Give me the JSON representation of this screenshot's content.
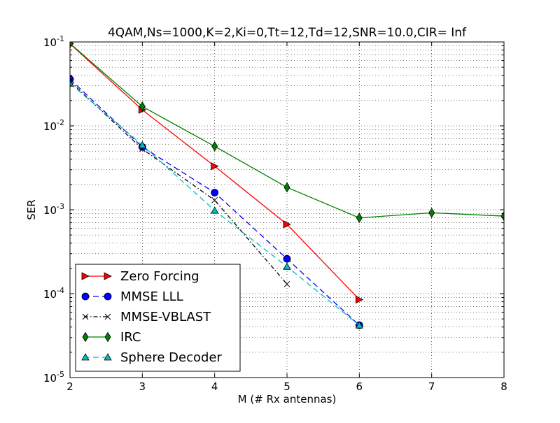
{
  "chart_data": {
    "type": "line",
    "title": "4QAM,Ns=1000,K=2,Ki=0,Tt=12,Td=12,SNR=10.0,CIR= Inf",
    "xlabel": "M (# Rx antennas)",
    "ylabel": "SER",
    "xlim": [
      2,
      8
    ],
    "ylim": [
      1e-05,
      0.1
    ],
    "yscale": "log",
    "grid": true,
    "legend_position": "bottom-left",
    "x_ticks": [
      2,
      3,
      4,
      5,
      6,
      7,
      8
    ],
    "y_ticks": [
      {
        "value": 0.1,
        "base": "10",
        "exp": "-1"
      },
      {
        "value": 0.01,
        "base": "10",
        "exp": "-2"
      },
      {
        "value": 0.001,
        "base": "10",
        "exp": "-3"
      },
      {
        "value": 0.0001,
        "base": "10",
        "exp": "-4"
      },
      {
        "value": 1e-05,
        "base": "10",
        "exp": "-5"
      }
    ],
    "series": [
      {
        "name": "Zero Forcing",
        "color": "#ff0000",
        "marker": "triangle-right",
        "dash": "",
        "x": [
          2,
          3,
          4,
          5,
          6
        ],
        "y": [
          0.095,
          0.0155,
          0.0033,
          0.00067,
          8.5e-05
        ]
      },
      {
        "name": "MMSE LLL",
        "color": "#0000ff",
        "marker": "circle",
        "dash": "8,5",
        "x": [
          2,
          3,
          4,
          5,
          6
        ],
        "y": [
          0.036,
          0.0056,
          0.0016,
          0.00026,
          4.2e-05
        ]
      },
      {
        "name": "MMSE-VBLAST",
        "color": "#000000",
        "marker": "x",
        "dash": "6,3,1.5,3",
        "x": [
          2,
          3,
          4,
          5
        ],
        "y": [
          0.034,
          0.0053,
          0.0013,
          0.00013
        ]
      },
      {
        "name": "IRC",
        "color": "#008000",
        "marker": "diamond",
        "dash": "",
        "x": [
          2,
          3,
          4,
          5,
          6,
          7,
          8
        ],
        "y": [
          0.096,
          0.017,
          0.0057,
          0.00185,
          0.0008,
          0.00092,
          0.00084
        ]
      },
      {
        "name": "Sphere Decoder",
        "color": "#00bfbf",
        "marker": "triangle-up",
        "dash": "8,5",
        "x": [
          2,
          3,
          4,
          5,
          6
        ],
        "y": [
          0.032,
          0.0059,
          0.00098,
          0.00021,
          4.2e-05
        ]
      }
    ]
  }
}
